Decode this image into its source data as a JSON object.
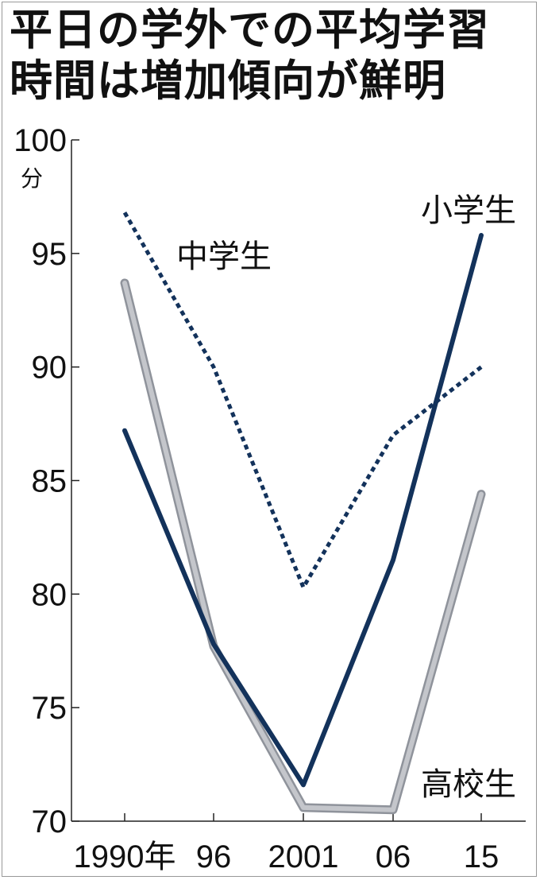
{
  "title_lines": [
    "平日の学外での平均学習",
    "時間は増加傾向が鮮明"
  ],
  "chart_data": {
    "type": "line",
    "title": "平日の学外での平均学習時間は増加傾向が鮮明",
    "ylabel": "分",
    "ylim": [
      70,
      100
    ],
    "y_ticks": [
      "100",
      "95",
      "90",
      "85",
      "80",
      "75",
      "70"
    ],
    "categories": [
      "1990年",
      "96",
      "2001",
      "06",
      "15"
    ],
    "x": [
      1990,
      1996,
      2001,
      2006,
      2015
    ],
    "grid": false,
    "legend": "direct labels on lines",
    "series": [
      {
        "name": "小学生",
        "values": [
          87.2,
          77.8,
          71.6,
          81.5,
          95.8
        ],
        "color": "#13325b",
        "style": "solid"
      },
      {
        "name": "中学生",
        "values": [
          96.8,
          90.0,
          80.3,
          87.0,
          90.0
        ],
        "color": "#13325b",
        "style": "dotted"
      },
      {
        "name": "高校生",
        "values": [
          93.7,
          77.7,
          70.6,
          70.5,
          84.4
        ],
        "color": "#a9acb3",
        "style": "solid"
      }
    ]
  }
}
